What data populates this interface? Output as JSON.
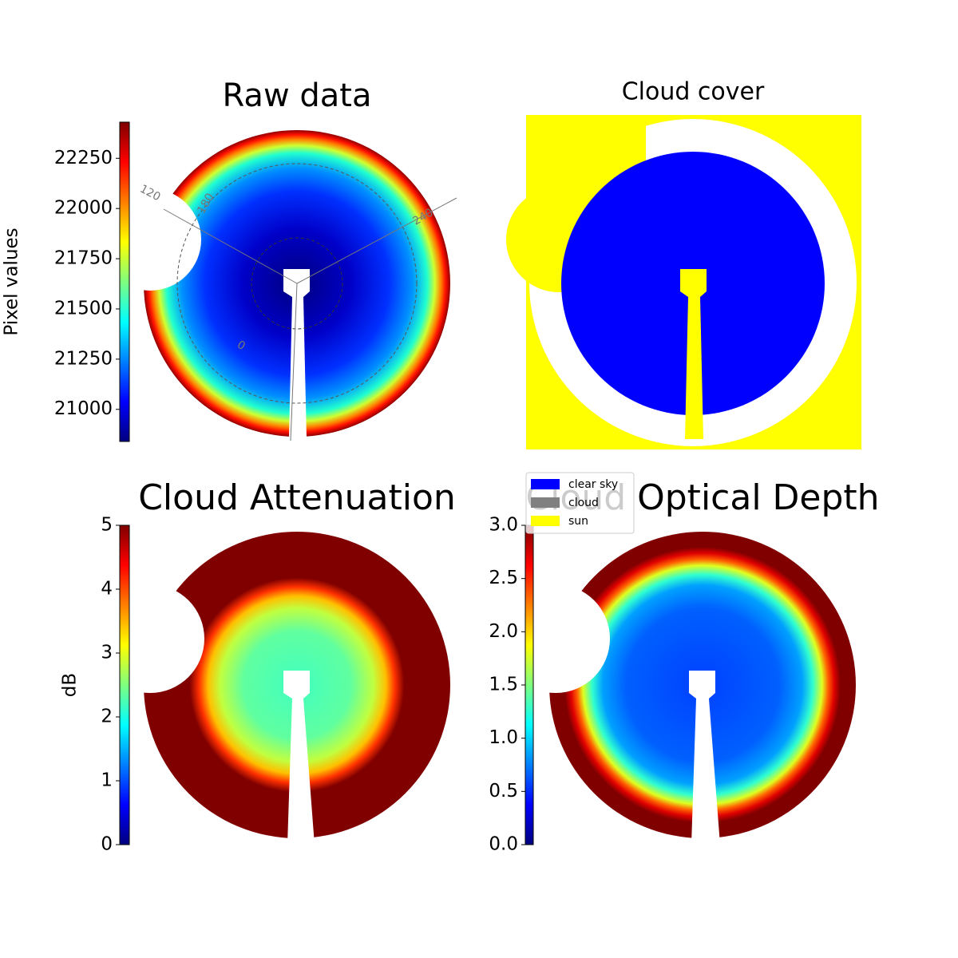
{
  "chart_data": [
    {
      "type": "image",
      "title": "Raw data",
      "colormap": "jet",
      "colorbar": {
        "label": "Pixel values",
        "lim": [
          20840,
          22430
        ],
        "ticks": [
          21000,
          21250,
          21500,
          21750,
          22000,
          22250
        ]
      },
      "annotations": [
        "120",
        "180",
        "240",
        "0"
      ]
    },
    {
      "type": "image",
      "title": "Cloud cover",
      "legend": [
        {
          "name": "clear sky",
          "color": "#0000ff"
        },
        {
          "name": "cloud",
          "color": "#808080"
        },
        {
          "name": "sun",
          "color": "#ffff00"
        }
      ]
    },
    {
      "type": "image",
      "title": "Cloud Attenuation",
      "colormap": "jet",
      "colorbar": {
        "label": "dB",
        "lim": [
          0,
          5
        ],
        "ticks": [
          0,
          1,
          2,
          3,
          4,
          5
        ]
      }
    },
    {
      "type": "image",
      "title": "Cloud Optical Depth",
      "colormap": "jet",
      "colorbar": {
        "lim": [
          0,
          3
        ],
        "ticks": [
          {
            "value": 0,
            "label": "0.0"
          },
          {
            "value": 0.5,
            "label": "0.5"
          },
          {
            "value": 1,
            "label": "1.0"
          },
          {
            "value": 1.5,
            "label": "1.5"
          },
          {
            "value": 2,
            "label": "2.0"
          },
          {
            "value": 2.5,
            "label": "2.5"
          },
          {
            "value": 3,
            "label": "3.0"
          }
        ]
      }
    }
  ]
}
